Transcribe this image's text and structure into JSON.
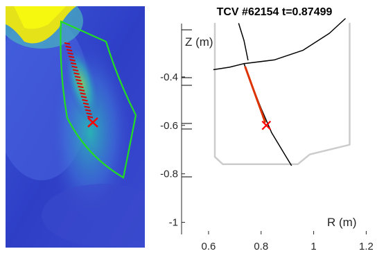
{
  "chart_data": [
    {
      "type": "heatmap",
      "description_visible": "camera image with green field-of-view outline and red tracked points",
      "colors": {
        "field_of_view": "#22dd22",
        "track": "#dd0000",
        "marker": "#ff0000"
      }
    },
    {
      "type": "line",
      "title": "TCV #62154 t=0.87499",
      "xlabel": "R (m)",
      "ylabel": "Z (m)",
      "xlim": [
        0.5,
        1.22
      ],
      "ylim": [
        -1.05,
        -0.18
      ],
      "xticks": [
        0.6,
        0.8,
        1,
        1.2
      ],
      "xtick_labels": [
        "0.6",
        "0.8",
        "1",
        "1.2"
      ],
      "yticks": [
        -0.4,
        -0.6,
        -0.8,
        -1
      ],
      "ytick_labels": [
        "-0.4",
        "-0.6",
        "-0.8",
        "-1"
      ],
      "series": [
        {
          "role": "vessel-wall",
          "color": "#cccccc",
          "x": [
            0.624,
            0.624,
            0.654,
            0.94,
            0.985,
            1.137,
            1.137,
            1.137
          ],
          "y": [
            -0.18,
            -0.73,
            -0.76,
            -0.76,
            -0.72,
            -0.68,
            -0.18,
            -0.18
          ]
        },
        {
          "role": "separatrix-upper",
          "color": "#000000",
          "x": [
            0.715,
            0.735,
            0.75
          ],
          "y": [
            -0.18,
            -0.25,
            -0.33
          ]
        },
        {
          "role": "separatrix-leg-inner",
          "color": "#000000",
          "x": [
            0.62,
            0.68,
            0.735
          ],
          "y": [
            -0.37,
            -0.36,
            -0.345
          ]
        },
        {
          "role": "separatrix-outer",
          "color": "#000000",
          "x": [
            0.735,
            0.85,
            0.96,
            1.06,
            1.12
          ],
          "y": [
            -0.345,
            -0.33,
            -0.29,
            -0.22,
            -0.16
          ]
        },
        {
          "role": "separatrix-divertor-leg",
          "color": "#000000",
          "x": [
            0.735,
            0.76,
            0.8,
            0.84,
            0.89,
            0.915
          ],
          "y": [
            -0.345,
            -0.42,
            -0.53,
            -0.63,
            -0.72,
            -0.765
          ]
        },
        {
          "role": "tracked-points",
          "color": "#dd3300",
          "x": [
            0.74,
            0.76,
            0.78,
            0.8,
            0.815
          ],
          "y": [
            -0.36,
            -0.42,
            -0.48,
            -0.54,
            -0.585
          ]
        }
      ],
      "marker": {
        "x": 0.82,
        "y": -0.6,
        "symbol": "x",
        "color": "#ff0000"
      }
    }
  ]
}
